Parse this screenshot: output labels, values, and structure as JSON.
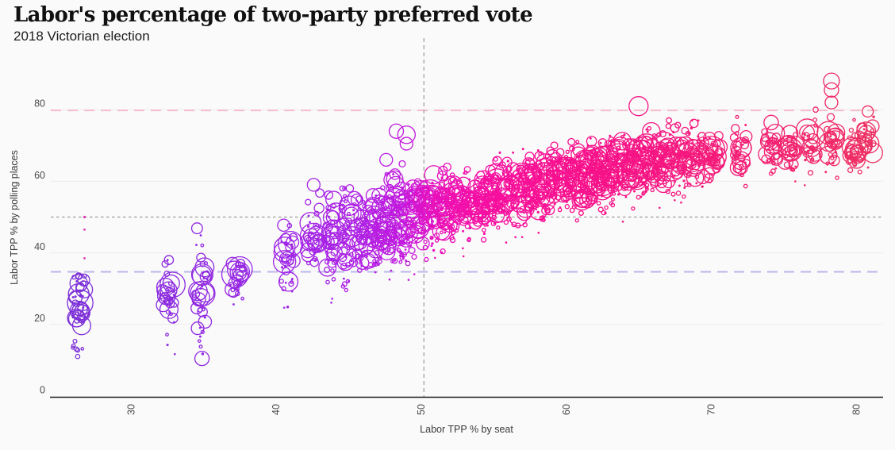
{
  "title": "Labor's percentage of two-party preferred vote",
  "subtitle": "2018 Victorian election",
  "colors": {
    "background": "#fafafa",
    "axis_line": "#1a1a1a",
    "grid_line": "#f0e9ea",
    "tick_text": "#4a4a4a",
    "title_text": "#111111",
    "subtitle_text": "#1c1c1c"
  },
  "chart_data": {
    "type": "scatter",
    "variant": "bubble-strip",
    "title": "Labor's percentage of two-party preferred vote",
    "subtitle": "2018 Victorian election",
    "xlabel": "Labor TPP % by seat",
    "ylabel": "Labor TPP % by polling places",
    "x_ticks": [
      30,
      40,
      50,
      60,
      70,
      80
    ],
    "y_ticks": [
      0,
      20,
      40,
      60,
      80
    ],
    "xlim": [
      24.4,
      81.9
    ],
    "ylim": [
      0,
      92.5
    ],
    "grid": "horizontal",
    "legend": "none",
    "reference_lines": [
      {
        "axis": "y",
        "value": 79.8,
        "color": "#f5bccb",
        "dash": "13 8",
        "width": 2
      },
      {
        "axis": "y",
        "value": 50,
        "color": "#9a9a9a",
        "dash": "3.5 3.5",
        "width": 1.3
      },
      {
        "axis": "y",
        "value": 34.7,
        "color": "#b9b6e9",
        "dash": "13 8",
        "width": 2
      },
      {
        "axis": "x",
        "value": 50.2,
        "color": "#a3a3a3",
        "dash": "5 4",
        "width": 1.3
      }
    ],
    "color_scale": {
      "mapped_to": "x",
      "stops": [
        [
          26,
          "#7b2ed8"
        ],
        [
          40,
          "#9c26e6"
        ],
        [
          46,
          "#ae20e4"
        ],
        [
          49,
          "#c319dd"
        ],
        [
          50,
          "#d714cf"
        ],
        [
          52,
          "#ee0fb2"
        ],
        [
          55,
          "#f70f9f"
        ],
        [
          60,
          "#f8108e"
        ],
        [
          66,
          "#f61483"
        ],
        [
          72,
          "#f41c75"
        ],
        [
          81,
          "#ee2e62"
        ]
      ]
    },
    "columns_schema": [
      "seat_tpp",
      "n_polling_places",
      "y_center",
      "y_spread",
      "y_min",
      "y_max",
      "n_large"
    ],
    "columns": [
      [
        26.4,
        42,
        23,
        5.5,
        1.5,
        33.5,
        3
      ],
      [
        32.6,
        34,
        27,
        6,
        7,
        38,
        3
      ],
      [
        34.9,
        40,
        28,
        8,
        6,
        47,
        3
      ],
      [
        37.3,
        30,
        33,
        3.5,
        13,
        37,
        3
      ],
      [
        40.8,
        34,
        38,
        6,
        14,
        48,
        3
      ],
      [
        42.6,
        36,
        45,
        6.5,
        18,
        59,
        3
      ],
      [
        43.9,
        44,
        44,
        7,
        20,
        57,
        4
      ],
      [
        45.0,
        46,
        45,
        7,
        22,
        58,
        4
      ],
      [
        46.0,
        42,
        44,
        6,
        25,
        55,
        4
      ],
      [
        46.8,
        42,
        46,
        6,
        25,
        56,
        4
      ],
      [
        47.6,
        48,
        48,
        6,
        28,
        64,
        4
      ],
      [
        48.3,
        50,
        50,
        6.5,
        30,
        70,
        4
      ],
      [
        49.0,
        46,
        48,
        6,
        14,
        60,
        4
      ],
      [
        49.7,
        46,
        50,
        6,
        32,
        63,
        4
      ],
      [
        50.4,
        46,
        51,
        6,
        33,
        63,
        4
      ],
      [
        51.1,
        44,
        52,
        5.5,
        35,
        63,
        4
      ],
      [
        51.8,
        44,
        52,
        5.5,
        30,
        64,
        4
      ],
      [
        52.5,
        44,
        53,
        5,
        35,
        65,
        4
      ],
      [
        53.3,
        42,
        54,
        5,
        36,
        66,
        4
      ],
      [
        54.1,
        42,
        54,
        5,
        25,
        66,
        4
      ],
      [
        54.8,
        42,
        55,
        5,
        38,
        67,
        4
      ],
      [
        55.5,
        42,
        56,
        5,
        30,
        68,
        4
      ],
      [
        56.3,
        42,
        56,
        5,
        37,
        68,
        4
      ],
      [
        57.0,
        40,
        57,
        5,
        30,
        69,
        4
      ],
      [
        57.8,
        40,
        58,
        5,
        38,
        70,
        4
      ],
      [
        58.5,
        40,
        58,
        5,
        25,
        70,
        4
      ],
      [
        59.2,
        40,
        59,
        5,
        37,
        70,
        4
      ],
      [
        60.0,
        40,
        60,
        5,
        40,
        71,
        4
      ],
      [
        60.7,
        40,
        60,
        5,
        28,
        71,
        4
      ],
      [
        61.4,
        44,
        61,
        5,
        42,
        72,
        4
      ],
      [
        62.1,
        46,
        62,
        5,
        35,
        73,
        4
      ],
      [
        62.8,
        46,
        62,
        5,
        44,
        73,
        4
      ],
      [
        63.5,
        44,
        63,
        5,
        38,
        74,
        4
      ],
      [
        64.3,
        42,
        63,
        5,
        45,
        74,
        4
      ],
      [
        65.0,
        40,
        64,
        5,
        30,
        75,
        4
      ],
      [
        65.8,
        40,
        65,
        5,
        46,
        76,
        4
      ],
      [
        66.5,
        40,
        65,
        5,
        47,
        76,
        4
      ],
      [
        67.3,
        40,
        66,
        5,
        40,
        77,
        4
      ],
      [
        68.1,
        38,
        66,
        5,
        48,
        77,
        4
      ],
      [
        69.0,
        38,
        67,
        5,
        42,
        77,
        4
      ],
      [
        70.2,
        36,
        67,
        5,
        35,
        78,
        4
      ],
      [
        72.0,
        34,
        68,
        5,
        44,
        79,
        3
      ],
      [
        74.1,
        32,
        69,
        4.5,
        50,
        79,
        3
      ],
      [
        75.4,
        32,
        70,
        4.5,
        52,
        79,
        3
      ],
      [
        76.8,
        30,
        70,
        4.5,
        45,
        80,
        3
      ],
      [
        78.3,
        30,
        70,
        5,
        52,
        80,
        3
      ],
      [
        79.9,
        28,
        70,
        4,
        55,
        81,
        3
      ],
      [
        80.8,
        26,
        71,
        4,
        56,
        78,
        3
      ]
    ],
    "extra_bubbles_schema": [
      "seat_tpp",
      "y",
      "radius_px"
    ],
    "extra_bubbles": [
      [
        26.4,
        31.5,
        11
      ],
      [
        26.4,
        28.5,
        13
      ],
      [
        34.9,
        10.5,
        9
      ],
      [
        42.6,
        59,
        8
      ],
      [
        47.6,
        66,
        8
      ],
      [
        48.3,
        74,
        9
      ],
      [
        49.0,
        73,
        11
      ],
      [
        49.0,
        70.5,
        8
      ],
      [
        65.0,
        81,
        12
      ],
      [
        78.3,
        82,
        8
      ],
      [
        78.3,
        85.5,
        9
      ],
      [
        78.3,
        88,
        10
      ],
      [
        80.8,
        79.5,
        7
      ]
    ],
    "outlier_points": {
      "color": "#df39b8",
      "schema": [
        "seat_tpp",
        "y",
        "radius_px"
      ],
      "points": [
        [
          26.8,
          50,
          1.6
        ],
        [
          26.8,
          46.5,
          1.4
        ],
        [
          26.8,
          38.5,
          1.4
        ]
      ]
    }
  }
}
